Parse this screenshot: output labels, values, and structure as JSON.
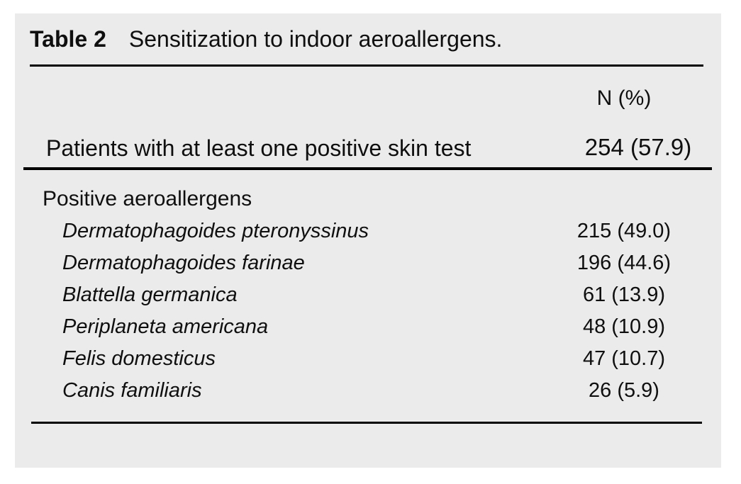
{
  "caption": {
    "label": "Table 2",
    "title": "Sensitization to indoor aeroallergens."
  },
  "header": {
    "value_column": "N (%)"
  },
  "summary": {
    "label": "Patients with at least one positive skin test",
    "value": "254 (57.9)"
  },
  "group": {
    "label": "Positive aeroallergens"
  },
  "rows": [
    {
      "name": "Dermatophagoides pteronyssinus",
      "value": "215 (49.0)"
    },
    {
      "name": "Dermatophagoides farinae",
      "value": "196 (44.6)"
    },
    {
      "name": "Blattella germanica",
      "value": "61 (13.9)"
    },
    {
      "name": "Periplaneta americana",
      "value": "48 (10.9)"
    },
    {
      "name": "Felis domesticus",
      "value": "47 (10.7)"
    },
    {
      "name": "Canis familiaris",
      "value": "26 (5.9)"
    }
  ],
  "colors": {
    "page_bg": "#ffffff",
    "panel_bg": "#ebebeb",
    "text": "#0f0f0f",
    "rule": "#000000"
  }
}
